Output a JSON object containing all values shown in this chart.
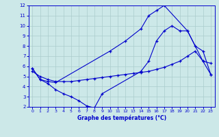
{
  "title": "Graphe des températures (°C)",
  "bg_color": "#cce8e8",
  "line_color": "#0000cc",
  "grid_color": "#aacccc",
  "xlim": [
    -0.5,
    23.5
  ],
  "ylim": [
    2,
    12
  ],
  "xticks": [
    0,
    1,
    2,
    3,
    4,
    5,
    6,
    7,
    8,
    9,
    10,
    11,
    12,
    13,
    14,
    15,
    16,
    17,
    18,
    19,
    20,
    21,
    22,
    23
  ],
  "yticks": [
    2,
    3,
    4,
    5,
    6,
    7,
    8,
    9,
    10,
    11,
    12
  ],
  "line1_x": [
    0,
    1,
    2,
    3,
    10,
    12,
    14,
    15,
    16,
    17,
    20,
    22,
    23
  ],
  "line1_y": [
    5.8,
    4.7,
    4.5,
    4.4,
    7.5,
    8.5,
    9.7,
    11.0,
    11.5,
    12.0,
    9.5,
    6.5,
    6.3
  ],
  "line2_x": [
    0,
    1,
    2,
    3,
    4,
    5,
    6,
    7,
    8,
    9,
    10,
    11,
    12,
    13,
    14,
    15,
    16,
    17,
    18,
    19,
    20,
    21,
    22,
    23
  ],
  "line2_y": [
    5.5,
    5.0,
    4.7,
    4.5,
    4.5,
    4.5,
    4.6,
    4.7,
    4.8,
    4.9,
    5.0,
    5.1,
    5.2,
    5.3,
    5.4,
    5.5,
    5.7,
    5.9,
    6.2,
    6.5,
    7.0,
    7.5,
    6.5,
    5.2
  ],
  "line3_x": [
    0,
    1,
    2,
    3,
    4,
    5,
    6,
    7,
    8,
    9,
    14,
    15,
    16,
    17,
    18,
    19,
    20,
    21,
    22,
    23
  ],
  "line3_y": [
    5.8,
    4.7,
    4.3,
    3.7,
    3.3,
    3.0,
    2.6,
    2.1,
    1.9,
    3.3,
    5.5,
    6.5,
    8.5,
    9.5,
    10.0,
    9.5,
    9.5,
    8.0,
    7.5,
    5.2
  ]
}
